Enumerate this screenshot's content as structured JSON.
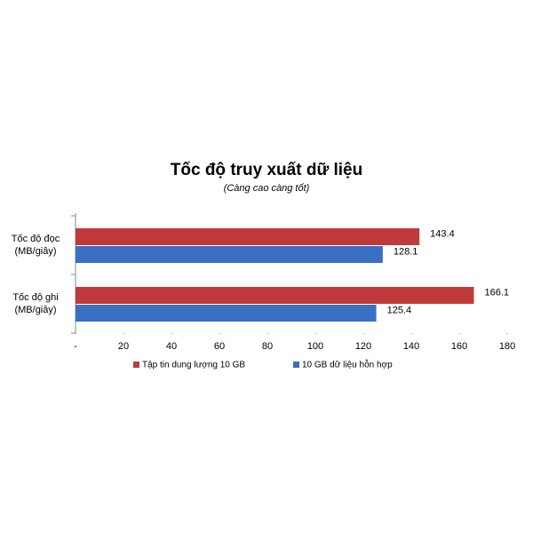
{
  "chart_data": {
    "type": "bar",
    "orientation": "horizontal",
    "title": "Tốc độ truy xuất dữ liệu",
    "subtitle": "(Càng cao càng tốt)",
    "categories": [
      "Tốc độ đọc\n(MB/giây)",
      "Tốc độ ghi\n(MB/giây)"
    ],
    "series": [
      {
        "name": "Tập tin dung lượng 10 GB",
        "color": "#c0393b",
        "values": [
          143.4,
          166.1
        ]
      },
      {
        "name": "10 GB dữ liệu hỗn hợp",
        "color": "#3a6fc4",
        "values": [
          128.1,
          125.4
        ]
      }
    ],
    "xlim": [
      0,
      180
    ],
    "xticks": [
      {
        "value": 0,
        "label": "-"
      },
      20,
      40,
      60,
      80,
      100,
      120,
      140,
      160,
      180
    ],
    "legend": "bottom"
  }
}
